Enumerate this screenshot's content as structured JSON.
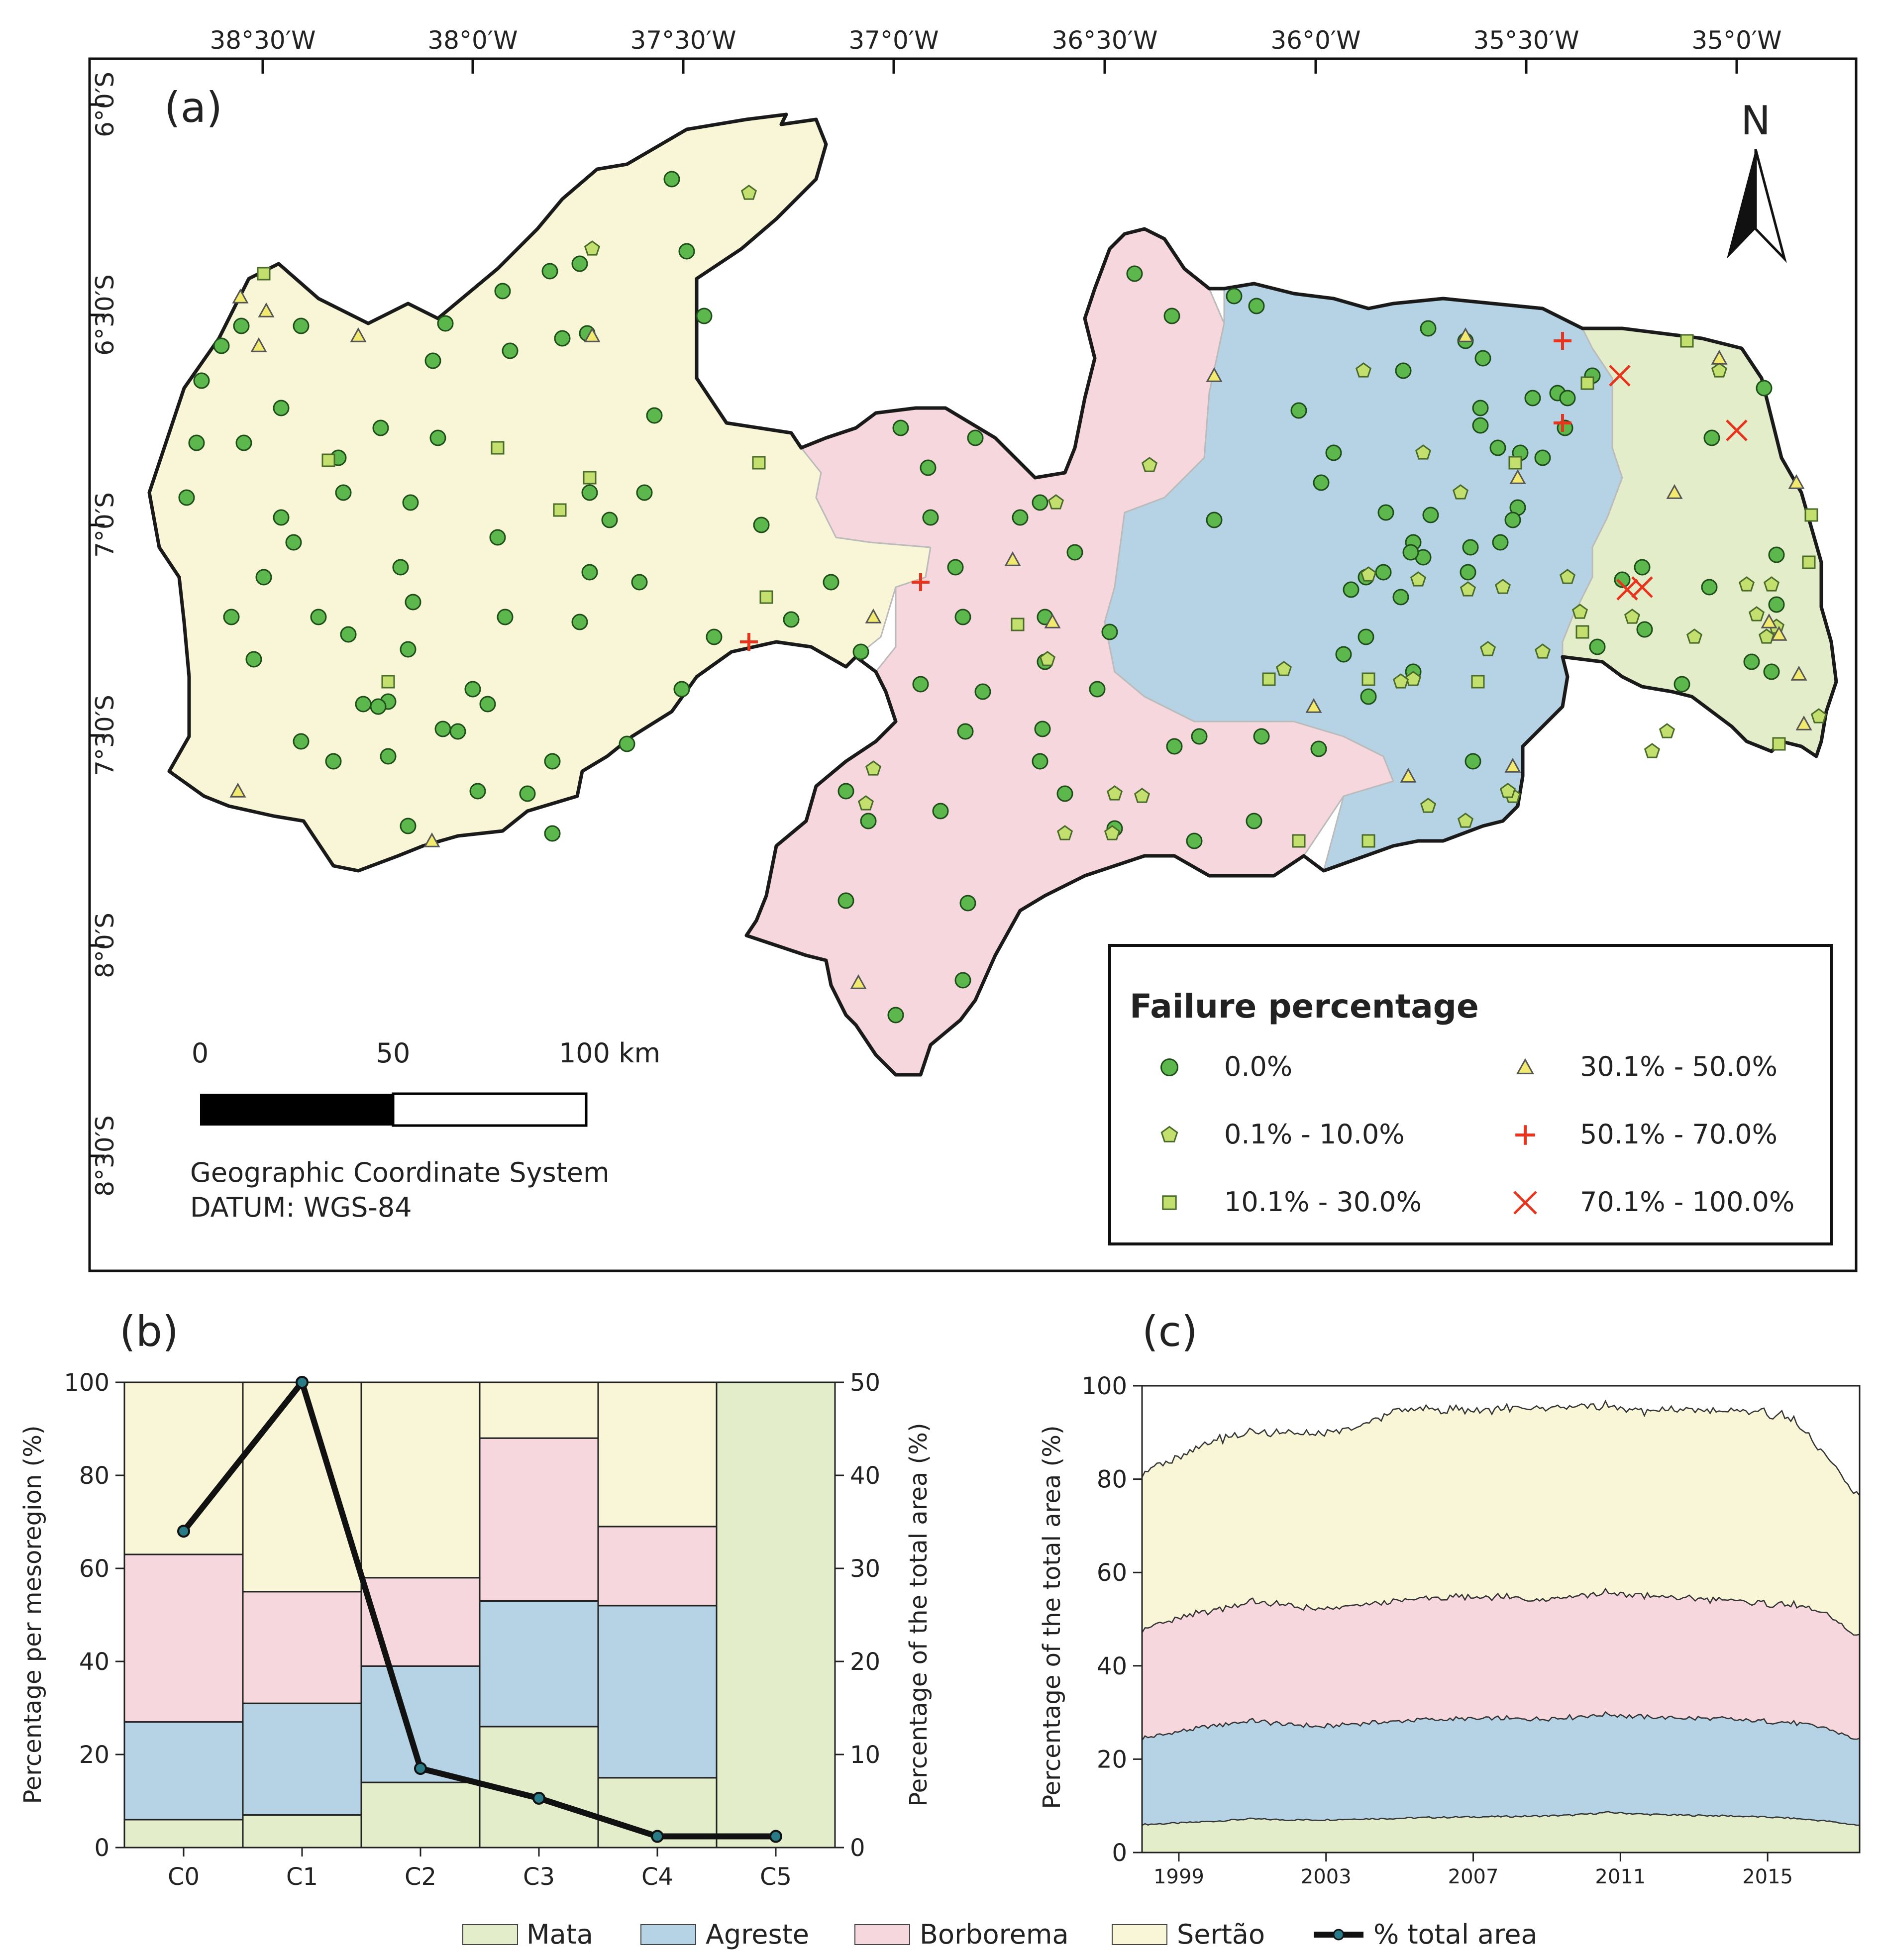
{
  "colors": {
    "mata": "#e3edca",
    "agreste": "#b5d3e5",
    "borborema": "#f5d7dd",
    "sertao": "#f8f6d6",
    "marker_green": "#5cb84d",
    "marker_yellow_green": "#c3e06f",
    "marker_yellow": "#f1ea6f",
    "marker_red": "#e8341c",
    "line": "#111111",
    "line_dot": "#2a7b88"
  },
  "panel_a": {
    "label": "(a)",
    "lon_labels": [
      "38°30′W",
      "38°0′W",
      "37°30′W",
      "37°0′W",
      "36°30′W",
      "36°0′W",
      "35°30′W",
      "35°0′W"
    ],
    "lat_labels": [
      "6°0′S",
      "6°30′S",
      "7°0′S",
      "7°30′S",
      "8°0′S",
      "8°30′S"
    ],
    "north_label": "N",
    "scale_bar": {
      "labels": [
        "0",
        "50",
        "100 km"
      ]
    },
    "crs_lines": [
      "Geographic Coordinate System",
      "DATUM: WGS-84"
    ],
    "legend": {
      "title": "Failure percentage",
      "items": [
        {
          "label": "0.0%",
          "symbol": "circle-icon"
        },
        {
          "label": "0.1% - 10.0%",
          "symbol": "pentagon-icon"
        },
        {
          "label": "10.1% - 30.0%",
          "symbol": "square-icon"
        },
        {
          "label": "30.1% - 50.0%",
          "symbol": "triangle-icon"
        },
        {
          "label": "50.1% - 70.0%",
          "symbol": "plus-icon"
        },
        {
          "label": "70.1% - 100.0%",
          "symbol": "cross-icon"
        }
      ]
    }
  },
  "chart_data": [
    {
      "id": "b",
      "type": "bar",
      "title": "(b)",
      "stacked": true,
      "categories": [
        "C0",
        "C1",
        "C2",
        "C3",
        "C4",
        "C5"
      ],
      "series": [
        {
          "name": "Mata",
          "values": [
            6,
            7,
            14,
            26,
            15,
            100
          ]
        },
        {
          "name": "Agreste",
          "values": [
            21,
            24,
            25,
            27,
            37,
            0
          ]
        },
        {
          "name": "Borborema",
          "values": [
            36,
            24,
            19,
            35,
            17,
            0
          ]
        },
        {
          "name": "Sertão",
          "values": [
            37,
            45,
            42,
            12,
            31,
            0
          ]
        }
      ],
      "line_series": {
        "name": "% total area",
        "axis": "right",
        "values": [
          34,
          50,
          8.5,
          5.3,
          1.2,
          1.2
        ]
      },
      "ylabel": "Percentage per mesoregion (%)",
      "ylabel_right": "Percentage of the total area (%)",
      "ylim": [
        0,
        100
      ],
      "ylim_right": [
        0,
        50
      ],
      "yticks": [
        "0",
        "20",
        "40",
        "60",
        "80",
        "100"
      ],
      "yticks_right": [
        "0",
        "10",
        "20",
        "30",
        "40",
        "50"
      ]
    },
    {
      "id": "c",
      "type": "area",
      "title": "(c)",
      "stacked": true,
      "x": [
        1998,
        1999,
        2000,
        2001,
        2002,
        2003,
        2004,
        2005,
        2006,
        2007,
        2008,
        2009,
        2010,
        2011,
        2012,
        2013,
        2014,
        2015,
        2016,
        2017,
        2017.5
      ],
      "series": [
        {
          "name": "Mata",
          "values": [
            6.0,
            6.3,
            6.7,
            7.2,
            7.0,
            7.0,
            7.2,
            7.3,
            7.5,
            7.6,
            7.7,
            7.8,
            8.0,
            8.6,
            8.2,
            8.0,
            7.9,
            7.7,
            7.4,
            6.8,
            5.8
          ]
        },
        {
          "name": "Agreste",
          "values": [
            18.5,
            19.5,
            20.5,
            21.0,
            20.5,
            20.0,
            20.5,
            20.8,
            21.0,
            21.0,
            21.0,
            20.8,
            21.0,
            21.0,
            20.8,
            20.8,
            20.8,
            20.5,
            20.5,
            20.0,
            18.2
          ]
        },
        {
          "name": "Borborema",
          "values": [
            23.5,
            24.2,
            24.8,
            25.5,
            25.5,
            25.0,
            25.3,
            25.7,
            26.0,
            26.0,
            26.0,
            25.7,
            26.0,
            26.0,
            26.0,
            25.7,
            25.5,
            25.3,
            25.3,
            24.5,
            22.0
          ]
        },
        {
          "name": "Sertão",
          "values": [
            33.5,
            34.5,
            36.5,
            36.3,
            37.0,
            37.5,
            38.0,
            40.8,
            40.5,
            40.0,
            40.3,
            41.0,
            40.5,
            40.0,
            39.5,
            40.5,
            40.3,
            41.0,
            40.5,
            34.0,
            30.0
          ]
        }
      ],
      "xticks": [
        "1999",
        "2003",
        "2007",
        "2011",
        "2015"
      ],
      "ylabel": "Percentage of the total area (%)",
      "ylim": [
        0,
        100
      ],
      "yticks": [
        "0",
        "20",
        "40",
        "60",
        "80",
        "100"
      ]
    }
  ],
  "bottom_legend": {
    "items": [
      "Mata",
      "Agreste",
      "Borborema",
      "Sertão",
      "% total area"
    ]
  }
}
